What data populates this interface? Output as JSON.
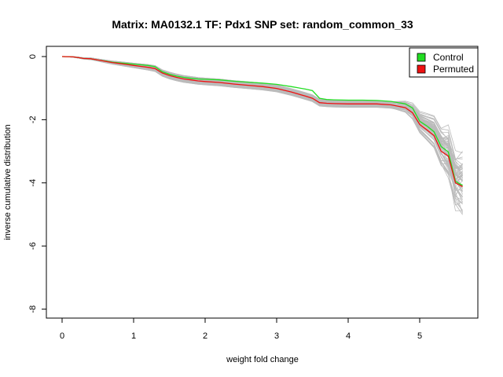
{
  "chart_data": {
    "type": "line",
    "title": "Matrix: MA0132.1 TF: Pdx1 SNP set: random_common_33",
    "xlabel": "weight fold change",
    "ylabel": "inverse cumulative distribution",
    "xlim": [
      0,
      5.6
    ],
    "ylim": [
      -8,
      0
    ],
    "xticks": [
      "0",
      "1",
      "2",
      "3",
      "4",
      "5"
    ],
    "yticks": [
      "0",
      "-2",
      "-4",
      "-6",
      "-8"
    ],
    "legend": {
      "position": "top-right",
      "entries": [
        {
          "label": "Control",
          "color": "#22dd22"
        },
        {
          "label": "Permuted",
          "color": "#ee1111"
        }
      ]
    },
    "background_lines_color": "#bbbbbb",
    "x": [
      0.0,
      0.15,
      0.25,
      0.3,
      0.4,
      0.5,
      0.6,
      0.7,
      0.8,
      0.9,
      1.0,
      1.1,
      1.2,
      1.3,
      1.4,
      1.5,
      1.6,
      1.7,
      1.8,
      1.9,
      2.0,
      2.2,
      2.4,
      2.6,
      2.8,
      3.0,
      3.2,
      3.4,
      3.5,
      3.6,
      3.7,
      3.8,
      4.0,
      4.2,
      4.4,
      4.6,
      4.8,
      4.9,
      5.0,
      5.1,
      5.2,
      5.3,
      5.4,
      5.5,
      5.6
    ],
    "series": [
      {
        "name": "Control",
        "color": "#22dd22",
        "values": [
          0.0,
          -0.01,
          -0.04,
          -0.06,
          -0.07,
          -0.11,
          -0.14,
          -0.18,
          -0.2,
          -0.22,
          -0.24,
          -0.26,
          -0.28,
          -0.32,
          -0.48,
          -0.56,
          -0.62,
          -0.66,
          -0.69,
          -0.71,
          -0.72,
          -0.74,
          -0.78,
          -0.81,
          -0.84,
          -0.88,
          -0.95,
          -1.03,
          -1.08,
          -1.32,
          -1.36,
          -1.37,
          -1.38,
          -1.38,
          -1.39,
          -1.42,
          -1.5,
          -1.63,
          -2.05,
          -2.2,
          -2.38,
          -2.85,
          -3.02,
          -3.95,
          -4.08
        ]
      },
      {
        "name": "Permuted",
        "color": "#ee1111",
        "values": [
          0.0,
          -0.01,
          -0.04,
          -0.06,
          -0.07,
          -0.11,
          -0.15,
          -0.19,
          -0.22,
          -0.25,
          -0.28,
          -0.31,
          -0.34,
          -0.38,
          -0.52,
          -0.6,
          -0.66,
          -0.71,
          -0.74,
          -0.77,
          -0.79,
          -0.82,
          -0.87,
          -0.91,
          -0.95,
          -1.01,
          -1.12,
          -1.25,
          -1.32,
          -1.46,
          -1.48,
          -1.49,
          -1.5,
          -1.5,
          -1.5,
          -1.53,
          -1.62,
          -1.78,
          -2.15,
          -2.32,
          -2.5,
          -3.0,
          -3.15,
          -4.0,
          -4.12
        ]
      }
    ]
  }
}
